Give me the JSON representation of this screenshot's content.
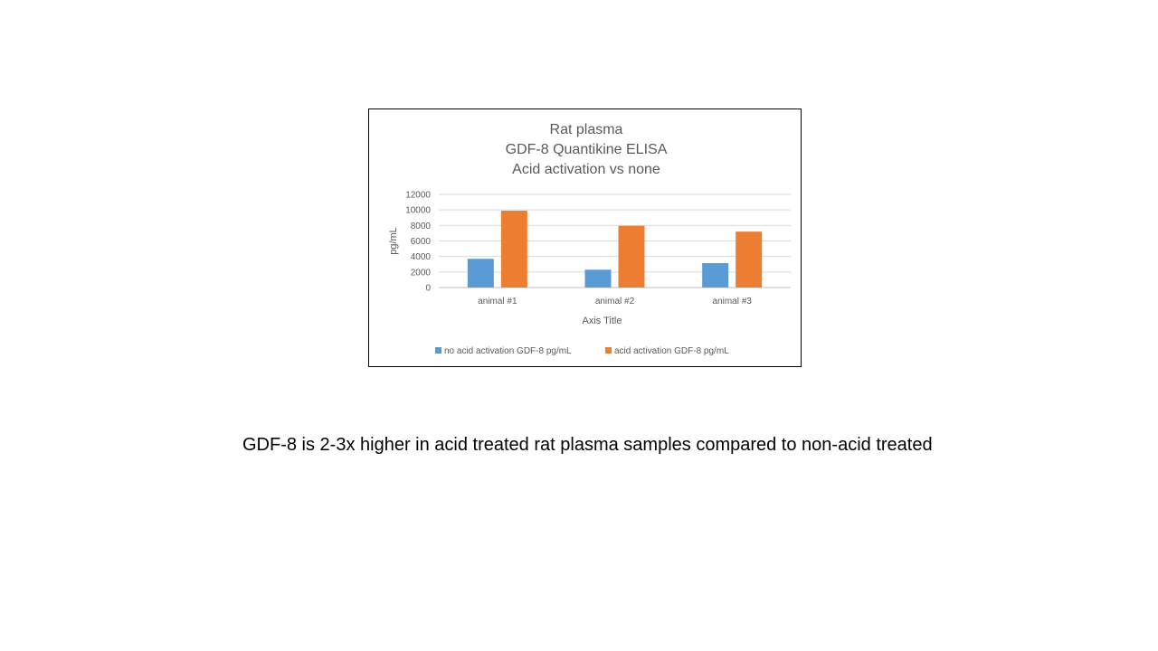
{
  "chart_data": {
    "type": "bar",
    "title": [
      "Rat plasma",
      "GDF-8 Quantikine ELISA",
      "Acid activation vs none"
    ],
    "xlabel": "Axis Title",
    "ylabel": "pg/mL",
    "categories": [
      "animal #1",
      "animal #2",
      "animal #3"
    ],
    "series": [
      {
        "name": "no acid activation GDF-8 pg/mL",
        "color": "#5B9BD5",
        "values": [
          3700,
          2300,
          3150
        ]
      },
      {
        "name": "acid activation GDF-8 pg/mL",
        "color": "#ED7D31",
        "values": [
          9900,
          7950,
          7200
        ]
      }
    ],
    "ylim": [
      0,
      12000
    ],
    "yticks": [
      0,
      2000,
      4000,
      6000,
      8000,
      10000,
      12000
    ],
    "grid": true,
    "legend": "bottom"
  },
  "caption": "GDF-8 is 2-3x higher in acid treated rat plasma samples compared to non-acid treated"
}
